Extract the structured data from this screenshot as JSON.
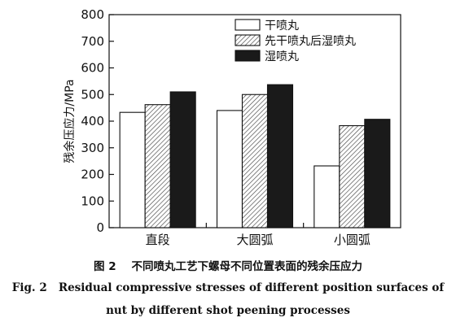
{
  "chart_data": {
    "type": "bar",
    "categories": [
      "直段",
      "大圆弧",
      "小圆弧"
    ],
    "series": [
      {
        "name": "干喷丸",
        "values": [
          433,
          440,
          232
        ],
        "color": "#ffffff",
        "pattern": "none"
      },
      {
        "name": "先干喷丸后湿喷丸",
        "values": [
          462,
          500,
          383
        ],
        "color": "#ffffff",
        "pattern": "hatch"
      },
      {
        "name": "湿喷丸",
        "values": [
          510,
          537,
          407
        ],
        "color": "#1a1a1a",
        "pattern": "solid"
      }
    ],
    "ylabel": "残余压应力/MPa",
    "xlabel": "",
    "ylim": [
      0,
      800
    ],
    "yticks": [
      0,
      100,
      200,
      300,
      400,
      500,
      600,
      700,
      800
    ],
    "grid": false,
    "legend": "top-right"
  },
  "caption": {
    "zh_label": "图 2",
    "zh_text": "不同喷丸工艺下螺母不同位置表面的残余压应力",
    "en_label": "Fig. 2",
    "en_text_line1": "Residual compressive stresses of different position surfaces of",
    "en_text_line2": "nut by different shot peening processes"
  }
}
